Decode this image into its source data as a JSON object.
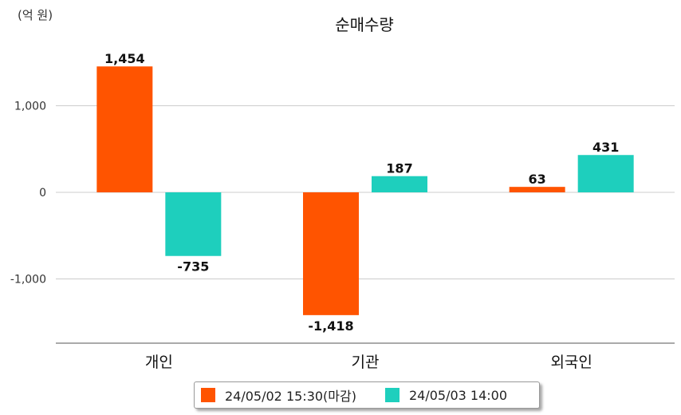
{
  "unit_label": "(억 원)",
  "chart_data": {
    "type": "bar",
    "title": "순매수량",
    "categories": [
      "개인",
      "기관",
      "외국인"
    ],
    "series": [
      {
        "name": "24/05/02 15:30(마감)",
        "values": [
          1454,
          -1418,
          63
        ],
        "labels": [
          "1,454",
          "-1,418",
          "63"
        ],
        "color": "#ff5400"
      },
      {
        "name": "24/05/03 14:00",
        "values": [
          -735,
          187,
          431
        ],
        "labels": [
          "-735",
          "187",
          "431"
        ],
        "color": "#1ecfbd"
      }
    ],
    "yticks": [
      1000,
      0,
      -1000
    ],
    "ytick_labels": [
      "1,000",
      "0",
      "-1,000"
    ],
    "ylim": [
      -1750,
      1750
    ],
    "grid": true,
    "legend_position": "bottom"
  }
}
